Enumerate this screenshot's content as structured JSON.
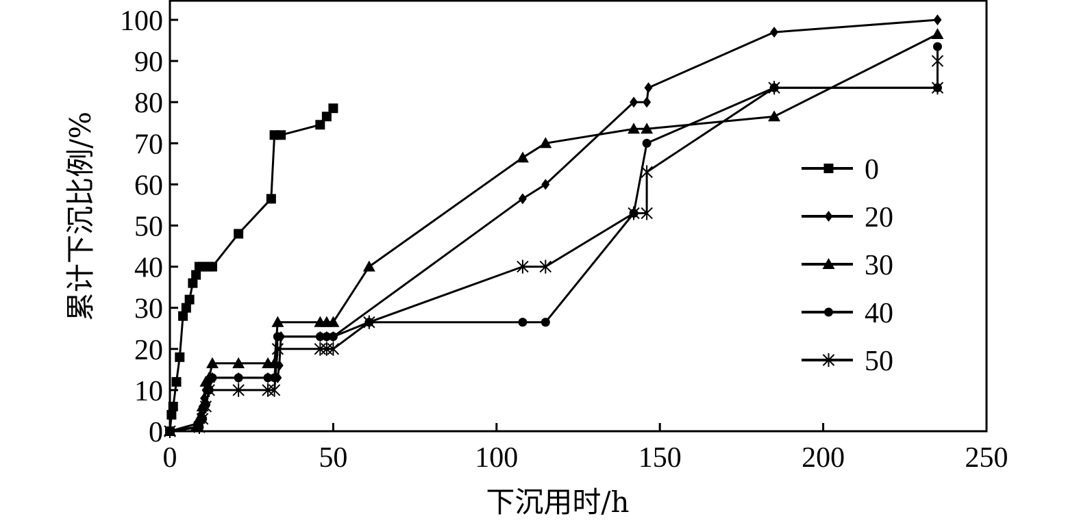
{
  "chart_data": {
    "type": "line",
    "title": "",
    "xlabel": "下沉用时/h",
    "ylabel": "累计下沉比例/%",
    "xlim": [
      0,
      250
    ],
    "ylim": [
      0,
      105
    ],
    "xticks": [
      0,
      50,
      100,
      150,
      200,
      250
    ],
    "yticks": [
      0,
      10,
      20,
      30,
      40,
      50,
      60,
      70,
      80,
      90,
      100
    ],
    "grid": false,
    "legend_position": "right",
    "series": [
      {
        "name": "0",
        "marker": "square",
        "points": [
          [
            0,
            0
          ],
          [
            0.5,
            4
          ],
          [
            1,
            6
          ],
          [
            2,
            12
          ],
          [
            3,
            18
          ],
          [
            4,
            28
          ],
          [
            5,
            30
          ],
          [
            6,
            32
          ],
          [
            7,
            36
          ],
          [
            8,
            38
          ],
          [
            9,
            40
          ],
          [
            10,
            40
          ],
          [
            12,
            40
          ],
          [
            13,
            40
          ],
          [
            21,
            48
          ],
          [
            31,
            56.5
          ],
          [
            32,
            72
          ],
          [
            34,
            72
          ],
          [
            46,
            74.5
          ],
          [
            48,
            76.5
          ],
          [
            50,
            78.5
          ]
        ]
      },
      {
        "name": "20",
        "marker": "diamond",
        "points": [
          [
            0,
            0
          ],
          [
            9,
            2
          ],
          [
            9.5,
            4
          ],
          [
            10,
            6
          ],
          [
            10.5,
            8
          ],
          [
            11,
            10
          ],
          [
            12,
            12
          ],
          [
            13,
            13
          ],
          [
            21,
            13
          ],
          [
            30,
            13
          ],
          [
            33,
            13
          ],
          [
            33.5,
            16
          ],
          [
            34,
            23
          ],
          [
            46,
            23
          ],
          [
            48,
            23
          ],
          [
            50,
            23
          ],
          [
            108,
            56.5
          ],
          [
            115,
            60
          ],
          [
            142,
            80
          ],
          [
            146,
            80
          ],
          [
            146.5,
            83.5
          ],
          [
            185,
            97
          ],
          [
            235,
            100
          ]
        ]
      },
      {
        "name": "30",
        "marker": "triangle",
        "points": [
          [
            0,
            0
          ],
          [
            8,
            1
          ],
          [
            9,
            3
          ],
          [
            10,
            6
          ],
          [
            11,
            12
          ],
          [
            12,
            13
          ],
          [
            13,
            16.5
          ],
          [
            21,
            16.5
          ],
          [
            30,
            16.5
          ],
          [
            32,
            16.5
          ],
          [
            33,
            26.5
          ],
          [
            46,
            26.5
          ],
          [
            48,
            26.5
          ],
          [
            50,
            26.5
          ],
          [
            61,
            40
          ],
          [
            108,
            66.5
          ],
          [
            115,
            70
          ],
          [
            142,
            73.5
          ],
          [
            146,
            73.5
          ],
          [
            185,
            76.5
          ],
          [
            235,
            96.5
          ]
        ]
      },
      {
        "name": "40",
        "marker": "circle",
        "points": [
          [
            0,
            0
          ],
          [
            9,
            1
          ],
          [
            10,
            3
          ],
          [
            11,
            6.5
          ],
          [
            12,
            10
          ],
          [
            13,
            13
          ],
          [
            21,
            13
          ],
          [
            30,
            13
          ],
          [
            32,
            13
          ],
          [
            33,
            23
          ],
          [
            46,
            23
          ],
          [
            48,
            23
          ],
          [
            50,
            23
          ],
          [
            61,
            26.5
          ],
          [
            108,
            26.5
          ],
          [
            115,
            26.5
          ],
          [
            142,
            53
          ],
          [
            146,
            70
          ],
          [
            185,
            83.5
          ],
          [
            235,
            83.5
          ],
          [
            235,
            93.5
          ]
        ]
      },
      {
        "name": "50",
        "marker": "asterisk",
        "points": [
          [
            0,
            0
          ],
          [
            9,
            1
          ],
          [
            10,
            3
          ],
          [
            11,
            6
          ],
          [
            12,
            10
          ],
          [
            21,
            10
          ],
          [
            30,
            10
          ],
          [
            32,
            10
          ],
          [
            33,
            20
          ],
          [
            46,
            20
          ],
          [
            48,
            20
          ],
          [
            50,
            20
          ],
          [
            61,
            26.5
          ],
          [
            108,
            40
          ],
          [
            115,
            40
          ],
          [
            142,
            53
          ],
          [
            146,
            53
          ],
          [
            146,
            63
          ],
          [
            185,
            83.5
          ],
          [
            235,
            83.5
          ],
          [
            235,
            90
          ]
        ]
      }
    ]
  }
}
